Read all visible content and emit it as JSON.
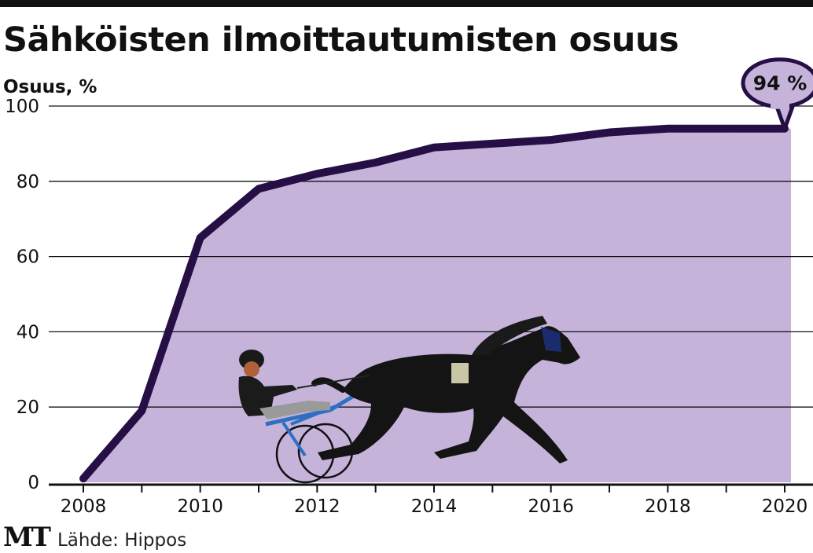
{
  "chart_data": {
    "type": "area",
    "title": "Sähköisten ilmoittautumisten osuus",
    "ylabel": "Osuus, %",
    "xlabel": "",
    "x": [
      2008,
      2009,
      2010,
      2011,
      2012,
      2013,
      2014,
      2015,
      2016,
      2017,
      2018,
      2019,
      2020
    ],
    "values": [
      1,
      19,
      65,
      78,
      82,
      85,
      89,
      90,
      91,
      93,
      94,
      94,
      94
    ],
    "xlim": [
      2007.5,
      2020.5
    ],
    "ylim": [
      0,
      100
    ],
    "x_ticks": [
      2008,
      2010,
      2012,
      2014,
      2016,
      2018,
      2020
    ],
    "y_ticks": [
      0,
      20,
      40,
      60,
      80,
      100
    ],
    "grid": "horizontal",
    "callout": {
      "x": 2020,
      "label": "94 %"
    },
    "colors": {
      "fill": "#c5b3da",
      "line": "#250f45",
      "grid": "#111111"
    }
  },
  "footer": {
    "logo": "MT",
    "source": "Lähde: Hippos"
  }
}
